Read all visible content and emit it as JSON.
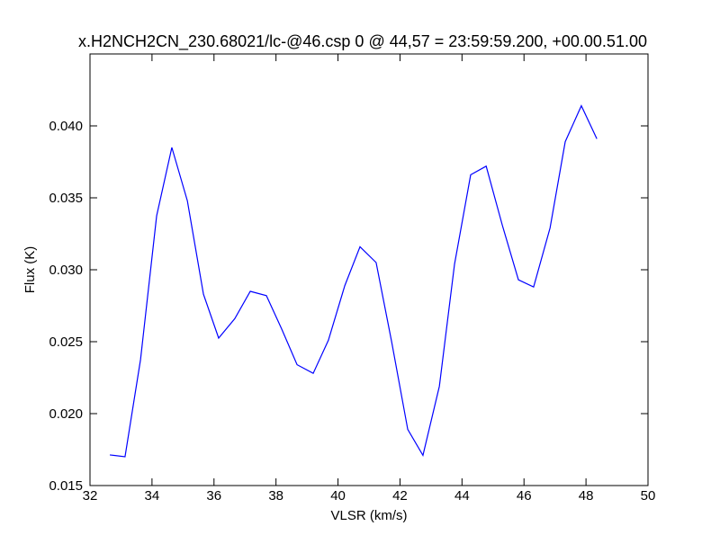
{
  "chart_data": {
    "type": "line",
    "title": "x.H2NCH2CN_230.68021/lc-@46.csp 0 @ 44,57 = 23:59:59.200, +00.00.51.00",
    "x_label": "VLSR (km/s)",
    "y_label": "Flux (K)",
    "x": [
      32.64,
      33.13,
      33.63,
      34.15,
      34.64,
      35.14,
      35.66,
      36.15,
      36.67,
      37.17,
      37.69,
      38.18,
      38.68,
      39.2,
      39.69,
      40.22,
      40.71,
      41.23,
      41.73,
      42.25,
      42.74,
      43.27,
      43.76,
      44.28,
      44.78,
      45.3,
      45.82,
      46.31,
      46.84,
      47.33,
      47.85,
      48.35
    ],
    "series": [
      {
        "color": "#0000ff",
        "values": [
          0.01713,
          0.017,
          0.02375,
          0.03375,
          0.0385,
          0.0348,
          0.0283,
          0.02525,
          0.0266,
          0.0285,
          0.0282,
          0.0259,
          0.0234,
          0.0228,
          0.0251,
          0.0289,
          0.0316,
          0.0305,
          0.025,
          0.0189,
          0.0171,
          0.0219,
          0.0304,
          0.0366,
          0.0372,
          0.0331,
          0.0293,
          0.0288,
          0.0329,
          0.0389,
          0.0414,
          0.0391
        ]
      }
    ],
    "xlim": [
      32,
      50
    ],
    "xticks": [
      32,
      34,
      36,
      38,
      40,
      42,
      44,
      46,
      48,
      50
    ],
    "ylim": [
      0.015,
      0.045
    ],
    "yticks": [
      0.015,
      {
        "value": 0.02,
        "label": "0.020"
      },
      0.025,
      {
        "value": 0.03,
        "label": "0.030"
      },
      0.035,
      {
        "value": 0.04,
        "label": "0.040"
      }
    ]
  }
}
